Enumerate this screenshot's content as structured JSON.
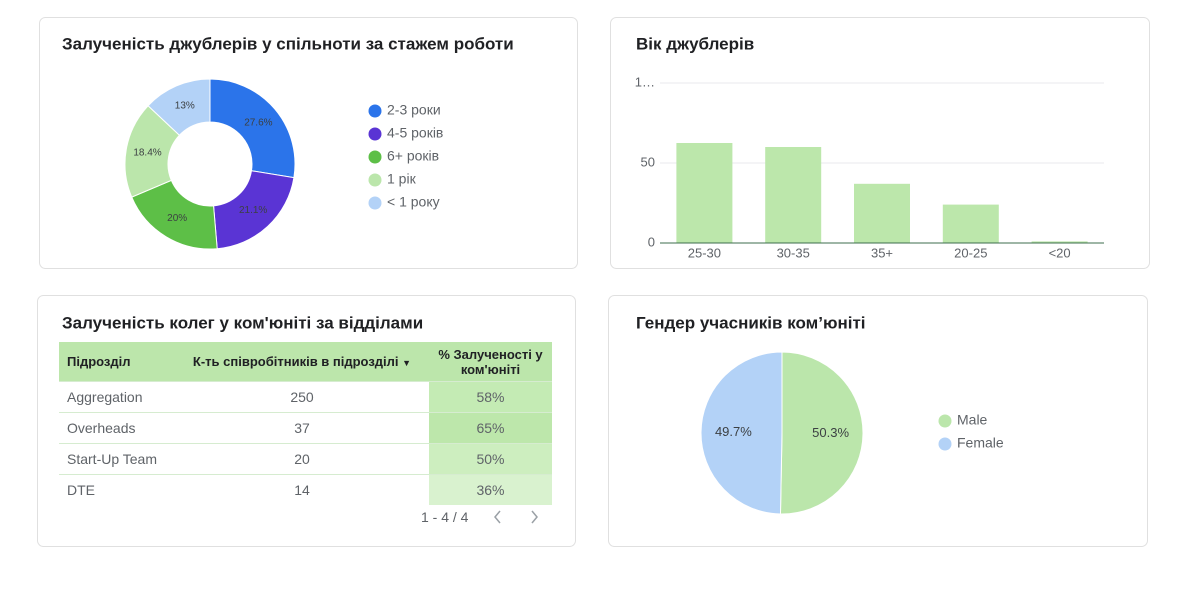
{
  "chart_data": [
    {
      "type": "donut",
      "title": "Залученість джублерів у спільноти за стажем роботи",
      "categories": [
        "2-3 роки",
        "4-5 років",
        "6+ років",
        "1 рік",
        "< 1 року"
      ],
      "values": [
        27.6,
        21.1,
        20,
        18.4,
        13
      ],
      "value_labels": [
        "27.6%",
        "21.1%",
        "20%",
        "18.4%",
        "13%"
      ],
      "colors": [
        "#2b74ea",
        "#5a34d4",
        "#5dbf47",
        "#bbe6ab",
        "#b3d2f7"
      ]
    },
    {
      "type": "bar",
      "title": "Вік джублерів",
      "categories": [
        "25-30",
        "30-35",
        "35+",
        "20-25",
        "<20"
      ],
      "values": [
        62.5,
        60,
        37,
        24,
        1
      ],
      "color": "#bce7ab",
      "ylim": [
        0,
        100
      ],
      "yticks": [
        0,
        50,
        {
          "value": 100,
          "label": "1…"
        }
      ],
      "grid": true
    },
    {
      "type": "pie",
      "title": "Гендер учасників ком’юніті",
      "categories": [
        "Male",
        "Female"
      ],
      "values": [
        50.3,
        49.7
      ],
      "value_labels": [
        "50.3%",
        "49.7%"
      ],
      "colors": [
        "#bbe6ab",
        "#b3d2f7"
      ]
    }
  ],
  "table": {
    "title": "Залученість колег у ком'юніті за відділами",
    "columns": [
      "Підрозділ",
      "К-ть співробітників в підрозділі",
      "% Залученості у ком'юніті"
    ],
    "rows": [
      [
        "Aggregation",
        "250",
        "58%"
      ],
      [
        "Overheads",
        "37",
        "65%"
      ],
      [
        "Start-Up Team",
        "20",
        "50%"
      ],
      [
        "DTE",
        "14",
        "36%"
      ]
    ],
    "pagination": "1 - 4 / 4"
  }
}
